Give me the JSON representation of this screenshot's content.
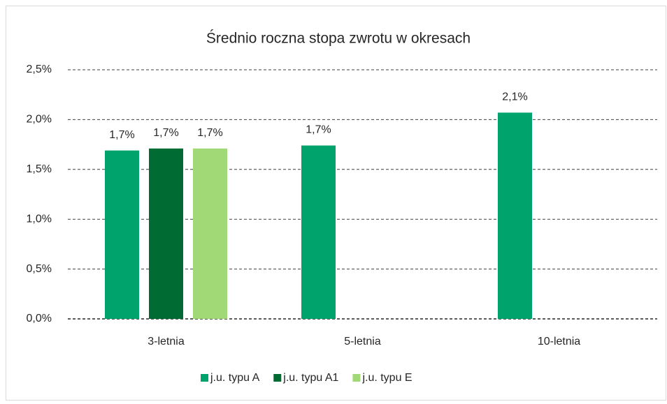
{
  "chart_data": {
    "type": "bar",
    "title": "Średnio roczna stopa zwrotu w okresach",
    "categories": [
      "3-letnia",
      "5-letnia",
      "10-letnia"
    ],
    "series": [
      {
        "name": "j.u. typu A",
        "color": "#00a36c",
        "values": [
          1.69,
          1.74,
          2.07
        ],
        "value_labels": [
          "1,7%",
          "1,7%",
          "2,1%"
        ]
      },
      {
        "name": "j.u. typu A1",
        "color": "#006b33",
        "values": [
          1.71,
          null,
          null
        ],
        "value_labels": [
          "1,7%",
          null,
          null
        ]
      },
      {
        "name": "j.u. typu E",
        "color": "#a2d977",
        "values": [
          1.71,
          null,
          null
        ],
        "value_labels": [
          "1,7%",
          null,
          null
        ]
      }
    ],
    "ylim": [
      0,
      2.5
    ],
    "yticks": [
      {
        "value": 0,
        "label": "0,0%"
      },
      {
        "value": 0.5,
        "label": "0,5%"
      },
      {
        "value": 1,
        "label": "1,0%"
      },
      {
        "value": 1.5,
        "label": "1,5%"
      },
      {
        "value": 2,
        "label": "2,0%"
      },
      {
        "value": 2.5,
        "label": "2,5%"
      }
    ],
    "grid": true,
    "legend": "bottom"
  }
}
